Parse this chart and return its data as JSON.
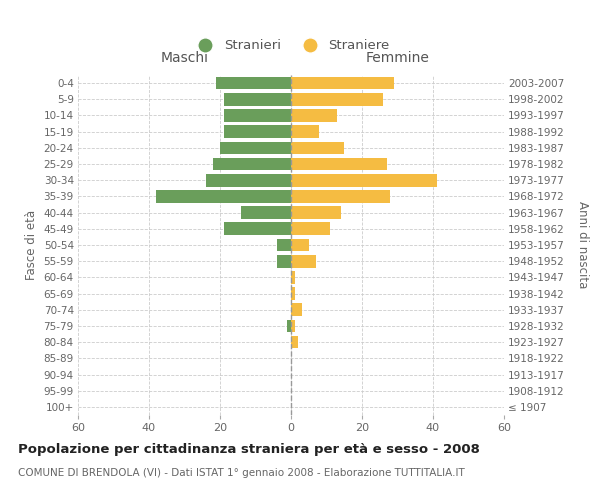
{
  "age_groups": [
    "100+",
    "95-99",
    "90-94",
    "85-89",
    "80-84",
    "75-79",
    "70-74",
    "65-69",
    "60-64",
    "55-59",
    "50-54",
    "45-49",
    "40-44",
    "35-39",
    "30-34",
    "25-29",
    "20-24",
    "15-19",
    "10-14",
    "5-9",
    "0-4"
  ],
  "birth_years": [
    "≤ 1907",
    "1908-1912",
    "1913-1917",
    "1918-1922",
    "1923-1927",
    "1928-1932",
    "1933-1937",
    "1938-1942",
    "1943-1947",
    "1948-1952",
    "1953-1957",
    "1958-1962",
    "1963-1967",
    "1968-1972",
    "1973-1977",
    "1978-1982",
    "1983-1987",
    "1988-1992",
    "1993-1997",
    "1998-2002",
    "2003-2007"
  ],
  "males": [
    0,
    0,
    0,
    0,
    0,
    1,
    0,
    0,
    0,
    4,
    4,
    19,
    14,
    38,
    24,
    22,
    20,
    19,
    19,
    19,
    21
  ],
  "females": [
    0,
    0,
    0,
    0,
    2,
    1,
    3,
    1,
    1,
    7,
    5,
    11,
    14,
    28,
    41,
    27,
    15,
    8,
    13,
    26,
    29
  ],
  "male_color": "#6a9e5b",
  "female_color": "#f5bc42",
  "title": "Popolazione per cittadinanza straniera per età e sesso - 2008",
  "subtitle": "COMUNE DI BRENDOLA (VI) - Dati ISTAT 1° gennaio 2008 - Elaborazione TUTTITALIA.IT",
  "xlabel_left": "Maschi",
  "xlabel_right": "Femmine",
  "ylabel_left": "Fasce di età",
  "ylabel_right": "Anni di nascita",
  "legend_stranieri": "Stranieri",
  "legend_straniere": "Straniere",
  "xlim": 60,
  "background_color": "#ffffff",
  "grid_color": "#cccccc"
}
